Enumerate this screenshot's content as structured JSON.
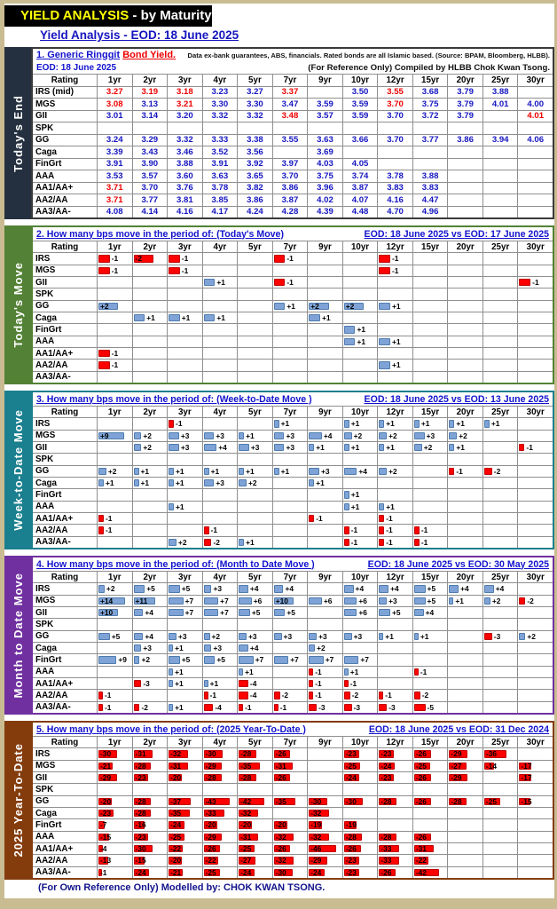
{
  "banner": {
    "highlight": "YIELD ANALYSIS",
    "rest": " - by Maturity"
  },
  "subtitle": "Yield Analysis - EOD: 18 June 2025",
  "rating_header": "Rating",
  "columns": [
    "1yr",
    "2yr",
    "3yr",
    "4yr",
    "5yr",
    "7yr",
    "9yr",
    "10yr",
    "12yr",
    "15yr",
    "20yr",
    "25yr",
    "30yr"
  ],
  "footer": "(For Own Reference Only) Modelled by: CHOK KWAN TSONG.",
  "colors": {
    "bar_positive": "#7FA3D6",
    "bar_negative": "#FF0000",
    "value_blue": "#1515C0",
    "value_red": "#EE0000",
    "banner_yellow": "#FFFF00",
    "frame_tan": "#C9BC92"
  },
  "tables": [
    {
      "sidebar": "Today's End",
      "color": "#24303F",
      "border": "#3A3A3A",
      "type": "values",
      "title_blue": "1. Generic Ringgit",
      "title_red": "Bond Yield.",
      "note": "Data ex-bank guarantees, ABS, financials. Rated bonds are all Islamic based.  (Source: BPAM, Bloomberg, HLBB).",
      "sub_left": "EOD: 18 June 2025",
      "sub_right": "(For Reference Only) Compiled by HLBB Chok Kwan Tsong.",
      "rows": [
        {
          "label": "IRS (mid)",
          "cells": [
            "3.27r",
            "3.19r",
            "3.18r",
            "3.23",
            "3.27",
            "3.37r",
            "",
            "3.50",
            "3.55r",
            "3.68",
            "3.79",
            "3.88",
            ""
          ]
        },
        {
          "label": "MGS",
          "cells": [
            "3.08r",
            "3.13",
            "3.21r",
            "3.30",
            "3.30",
            "3.47",
            "3.59",
            "3.59",
            "3.70r",
            "3.75",
            "3.79",
            "4.01",
            "4.00"
          ]
        },
        {
          "label": "GII",
          "cells": [
            "3.01",
            "3.14",
            "3.20",
            "3.32",
            "3.32",
            "3.48r",
            "3.57",
            "3.59",
            "3.70",
            "3.72",
            "3.79",
            "",
            "4.01r"
          ]
        },
        {
          "label": "SPK",
          "cells": [
            "",
            "",
            "",
            "",
            "",
            "",
            "",
            "",
            "",
            "",
            "",
            "",
            ""
          ]
        },
        {
          "label": "GG",
          "cells": [
            "3.24",
            "3.29",
            "3.32",
            "3.33",
            "3.38",
            "3.55",
            "3.63",
            "3.66",
            "3.70",
            "3.77",
            "3.86",
            "3.94",
            "4.06"
          ]
        },
        {
          "label": "Caga",
          "cells": [
            "3.39",
            "3.43",
            "3.46",
            "3.52",
            "3.56",
            "",
            "3.69",
            "",
            "",
            "",
            "",
            "",
            ""
          ]
        },
        {
          "label": "FinGrt",
          "cells": [
            "3.91",
            "3.90",
            "3.88",
            "3.91",
            "3.92",
            "3.97",
            "4.03",
            "4.05",
            "",
            "",
            "",
            "",
            ""
          ]
        },
        {
          "label": "AAA",
          "cells": [
            "3.53",
            "3.57",
            "3.60",
            "3.63",
            "3.65",
            "3.70",
            "3.75",
            "3.74",
            "3.78",
            "3.88",
            "",
            "",
            ""
          ]
        },
        {
          "label": "AA1/AA+",
          "cells": [
            "3.71r",
            "3.70",
            "3.76",
            "3.78",
            "3.82",
            "3.86",
            "3.96",
            "3.87",
            "3.83",
            "3.83",
            "",
            "",
            ""
          ]
        },
        {
          "label": "AA2/AA",
          "cells": [
            "3.71r",
            "3.77",
            "3.81",
            "3.85",
            "3.86",
            "3.87",
            "4.02",
            "4.07",
            "4.16",
            "4.47",
            "",
            "",
            ""
          ]
        },
        {
          "label": "AA3/AA-",
          "cells": [
            "4.08",
            "4.14",
            "4.16",
            "4.17",
            "4.24",
            "4.28",
            "4.39",
            "4.48",
            "4.70",
            "4.96",
            "",
            "",
            ""
          ]
        }
      ]
    },
    {
      "sidebar": "Today's Move",
      "color": "#538135",
      "border": "#538135",
      "type": "bars",
      "max": 3,
      "title": "2. How many bps move in the period of: (Today's Move)",
      "eod": "EOD: 18 June 2025 vs EOD: 17 June 2025",
      "rows": [
        {
          "label": "IRS",
          "cells": [
            -1,
            -2,
            -1,
            null,
            null,
            -1,
            null,
            null,
            -1,
            null,
            null,
            null,
            null
          ]
        },
        {
          "label": "MGS",
          "cells": [
            -1,
            null,
            -1,
            null,
            null,
            null,
            null,
            null,
            -1,
            null,
            null,
            null,
            null
          ]
        },
        {
          "label": "GII",
          "cells": [
            null,
            null,
            null,
            1,
            null,
            -1,
            null,
            null,
            null,
            null,
            null,
            null,
            -1
          ]
        },
        {
          "label": "SPK",
          "cells": [
            null,
            null,
            null,
            null,
            null,
            null,
            null,
            null,
            null,
            null,
            null,
            null,
            null
          ]
        },
        {
          "label": "GG",
          "cells": [
            2,
            null,
            null,
            null,
            null,
            1,
            2,
            2,
            1,
            null,
            null,
            null,
            null
          ]
        },
        {
          "label": "Caga",
          "cells": [
            null,
            1,
            1,
            1,
            null,
            null,
            1,
            null,
            null,
            null,
            null,
            null,
            null
          ]
        },
        {
          "label": "FinGrt",
          "cells": [
            null,
            null,
            null,
            null,
            null,
            null,
            null,
            1,
            null,
            null,
            null,
            null,
            null
          ]
        },
        {
          "label": "AAA",
          "cells": [
            null,
            null,
            null,
            null,
            null,
            null,
            null,
            1,
            1,
            null,
            null,
            null,
            null
          ]
        },
        {
          "label": "AA1/AA+",
          "cells": [
            -1,
            null,
            null,
            null,
            null,
            null,
            null,
            null,
            null,
            null,
            null,
            null,
            null
          ]
        },
        {
          "label": "AA2/AA",
          "cells": [
            -1,
            null,
            null,
            null,
            null,
            null,
            null,
            null,
            1,
            null,
            null,
            null,
            null
          ]
        },
        {
          "label": "AA3/AA-",
          "cells": [
            null,
            null,
            null,
            null,
            null,
            null,
            null,
            null,
            null,
            null,
            null,
            null,
            null
          ]
        }
      ]
    },
    {
      "sidebar": "Week-to-Date Move",
      "color": "#1A7F8E",
      "border": "#1A7F8E",
      "type": "bars",
      "max": 10,
      "title": "3. How many bps move in the period of:  (Week-to-Date Move )",
      "eod": "EOD: 18 June 2025 vs EOD: 13 June 2025",
      "rows": [
        {
          "label": "IRS",
          "cells": [
            null,
            null,
            -1,
            null,
            null,
            1,
            null,
            1,
            1,
            1,
            1,
            1,
            null
          ]
        },
        {
          "label": "MGS",
          "cells": [
            9,
            2,
            3,
            3,
            1,
            3,
            4,
            2,
            2,
            3,
            2,
            null,
            null
          ]
        },
        {
          "label": "GII",
          "cells": [
            null,
            2,
            3,
            4,
            3,
            3,
            1,
            1,
            1,
            2,
            1,
            null,
            -1
          ]
        },
        {
          "label": "SPK",
          "cells": [
            null,
            null,
            null,
            null,
            null,
            null,
            null,
            null,
            null,
            null,
            null,
            null,
            null
          ]
        },
        {
          "label": "GG",
          "cells": [
            2,
            1,
            1,
            1,
            1,
            1,
            3,
            4,
            2,
            null,
            -1,
            -2,
            null
          ]
        },
        {
          "label": "Caga",
          "cells": [
            1,
            1,
            1,
            3,
            2,
            null,
            1,
            null,
            null,
            null,
            null,
            null,
            null
          ]
        },
        {
          "label": "FinGrt",
          "cells": [
            null,
            null,
            null,
            null,
            null,
            null,
            null,
            1,
            null,
            null,
            null,
            null,
            null
          ]
        },
        {
          "label": "AAA",
          "cells": [
            null,
            null,
            1,
            null,
            null,
            null,
            null,
            1,
            1,
            null,
            null,
            null,
            null
          ]
        },
        {
          "label": "AA1/AA+",
          "cells": [
            -1,
            null,
            null,
            null,
            null,
            null,
            -1,
            null,
            -1,
            null,
            null,
            null,
            null
          ]
        },
        {
          "label": "AA2/AA",
          "cells": [
            -1,
            null,
            null,
            -1,
            null,
            null,
            null,
            -1,
            -1,
            -1,
            null,
            null,
            null
          ]
        },
        {
          "label": "AA3/AA-",
          "cells": [
            null,
            null,
            2,
            -2,
            1,
            null,
            null,
            -1,
            -1,
            -1,
            null,
            null,
            null
          ]
        }
      ]
    },
    {
      "sidebar": "Month to Date Move",
      "color": "#7030A0",
      "border": "#7030A0",
      "type": "bars",
      "max": 15,
      "title": "4. How many bps move in the period of: (Month to Date Move )",
      "eod": "EOD: 18 June 2025 vs EOD: 30 May 2025",
      "rows": [
        {
          "label": "IRS",
          "cells": [
            2,
            5,
            5,
            3,
            4,
            4,
            null,
            4,
            4,
            5,
            4,
            4,
            null
          ]
        },
        {
          "label": "MGS",
          "cells": [
            14,
            11,
            7,
            7,
            6,
            10,
            6,
            6,
            3,
            5,
            1,
            2,
            -2
          ]
        },
        {
          "label": "GII",
          "cells": [
            10,
            4,
            7,
            7,
            5,
            5,
            null,
            6,
            5,
            4,
            null,
            null,
            null
          ]
        },
        {
          "label": "SPK",
          "cells": [
            null,
            null,
            null,
            null,
            null,
            null,
            null,
            null,
            null,
            null,
            null,
            null,
            null
          ]
        },
        {
          "label": "GG",
          "cells": [
            5,
            4,
            3,
            2,
            3,
            3,
            3,
            3,
            1,
            1,
            null,
            -3,
            2
          ]
        },
        {
          "label": "Caga",
          "cells": [
            null,
            3,
            1,
            3,
            4,
            null,
            2,
            null,
            null,
            null,
            null,
            null,
            null
          ]
        },
        {
          "label": "FinGrt",
          "cells": [
            9,
            2,
            5,
            5,
            7,
            7,
            7,
            7,
            null,
            null,
            null,
            null,
            null
          ]
        },
        {
          "label": "AAA",
          "cells": [
            null,
            null,
            1,
            null,
            1,
            null,
            -1,
            1,
            null,
            -1,
            null,
            null,
            null
          ]
        },
        {
          "label": "AA1/AA+",
          "cells": [
            null,
            -3,
            1,
            1,
            -4,
            null,
            -1,
            -1,
            null,
            null,
            null,
            null,
            null
          ]
        },
        {
          "label": "AA2/AA",
          "cells": [
            -1,
            null,
            null,
            -1,
            -4,
            -2,
            -1,
            -2,
            -1,
            -2,
            null,
            null,
            null
          ]
        },
        {
          "label": "AA3/AA-",
          "cells": [
            -1,
            -2,
            1,
            -4,
            -1,
            -1,
            -3,
            -3,
            -3,
            -5,
            null,
            null,
            null
          ]
        }
      ]
    },
    {
      "sidebar": "2025 Year-To-Date",
      "color": "#843C0C",
      "border": "#843C0C",
      "type": "bars",
      "max": 48,
      "title": "5. How many bps move in the period of: (2025 Year-To-Date )",
      "eod": "EOD: 18 June 2025 vs EOD: 31 Dec 2024",
      "rows": [
        {
          "label": "IRS",
          "cells": [
            -30,
            -31,
            -32,
            -30,
            -28,
            -26,
            null,
            -23,
            -23,
            -26,
            -29,
            -36,
            null
          ]
        },
        {
          "label": "MGS",
          "cells": [
            -21,
            -28,
            -31,
            -29,
            -35,
            -31,
            null,
            -25,
            -24,
            -25,
            -27,
            -14,
            -17
          ]
        },
        {
          "label": "GII",
          "cells": [
            -29,
            -23,
            -20,
            -28,
            -28,
            -26,
            null,
            -24,
            -23,
            -26,
            -29,
            null,
            -17
          ]
        },
        {
          "label": "SPK",
          "cells": [
            null,
            null,
            null,
            null,
            null,
            null,
            null,
            null,
            null,
            null,
            null,
            null,
            null
          ]
        },
        {
          "label": "GG",
          "cells": [
            -20,
            -28,
            -37,
            -43,
            -42,
            -35,
            -30,
            -30,
            -28,
            -26,
            -28,
            -25,
            -15
          ]
        },
        {
          "label": "Caga",
          "cells": [
            -23,
            -28,
            -35,
            -33,
            -32,
            null,
            -32,
            null,
            null,
            null,
            null,
            null,
            null
          ]
        },
        {
          "label": "FinGrt",
          "cells": [
            -7,
            -16,
            -24,
            -20,
            -20,
            -20,
            -19,
            -19,
            null,
            null,
            null,
            null,
            null
          ]
        },
        {
          "label": "AAA",
          "cells": [
            -15,
            -23,
            -25,
            -29,
            -31,
            -32,
            -32,
            -28,
            -28,
            -26,
            null,
            null,
            null
          ]
        },
        {
          "label": "AA1/AA+",
          "cells": [
            -4,
            -30,
            -22,
            -26,
            -25,
            -26,
            -46,
            -26,
            -33,
            -31,
            null,
            null,
            null
          ]
        },
        {
          "label": "AA2/AA",
          "cells": [
            -13,
            -15,
            -20,
            -22,
            -27,
            -32,
            -29,
            -23,
            -33,
            -22,
            null,
            null,
            null
          ]
        },
        {
          "label": "AA3/AA-",
          "cells": [
            -1,
            -24,
            -21,
            -25,
            -24,
            -30,
            -24,
            -23,
            -26,
            -42,
            null,
            null,
            null
          ]
        }
      ]
    }
  ]
}
